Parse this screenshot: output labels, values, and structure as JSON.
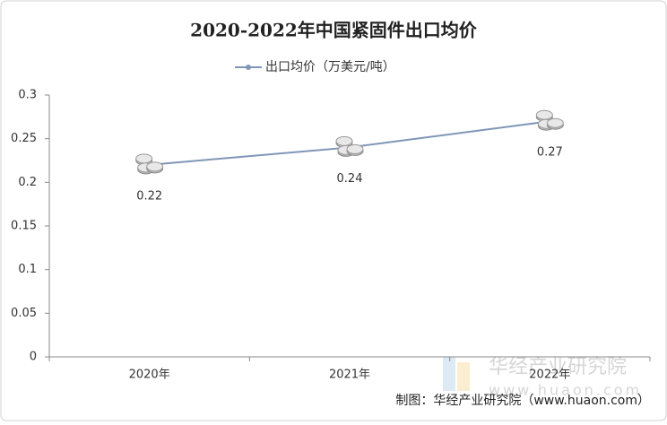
{
  "chart_data": {
    "type": "line",
    "title": "2020-2022年中国紧固件出口均价",
    "categories": [
      "2020年",
      "2021年",
      "2022年"
    ],
    "series": [
      {
        "name": "出口均价（万美元/吨）",
        "color": "#8096b8",
        "values": [
          0.22,
          0.24,
          0.27
        ]
      }
    ],
    "ylim": [
      0,
      0.3
    ],
    "yticks": [
      0,
      0.05,
      0.1,
      0.15,
      0.2,
      0.25,
      0.3
    ],
    "grid": false,
    "legend": "top",
    "source": "制图：华经产业研究院（www.huaon.com）",
    "watermark": {
      "name": "华经产业研究院",
      "url": "www.huaon.com"
    }
  }
}
